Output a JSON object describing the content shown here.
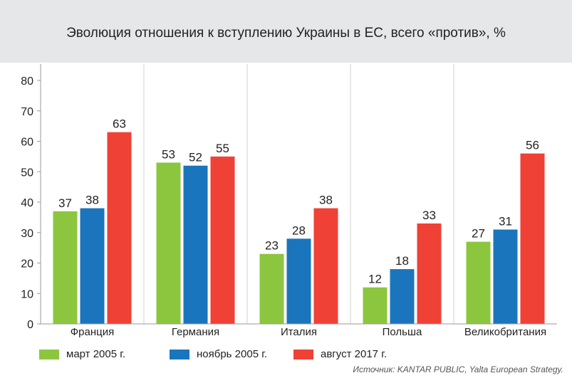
{
  "header": {
    "title": "Эволюция отношения к вступлению Украины в ЕС, всего «против», %"
  },
  "chart_data": {
    "type": "bar",
    "title": "Эволюция отношения к вступлению Украины в ЕС, всего «против», %",
    "categories": [
      "Франция",
      "Германия",
      "Италия",
      "Польша",
      "Великобритания"
    ],
    "series": [
      {
        "name": "март 2005 г.",
        "color": "#8cc63f",
        "values": [
          37,
          53,
          23,
          12,
          27
        ]
      },
      {
        "name": "ноябрь 2005 г.",
        "color": "#1b75bc",
        "values": [
          38,
          52,
          28,
          18,
          31
        ]
      },
      {
        "name": "август 2017 г.",
        "color": "#ef4136",
        "values": [
          63,
          55,
          38,
          33,
          56
        ]
      }
    ],
    "ylim": [
      0,
      80
    ],
    "yticks": [
      0,
      10,
      20,
      30,
      40,
      50,
      60,
      70,
      80
    ],
    "grid": false,
    "category_separators": true,
    "legend_position": "bottom"
  },
  "source": "Источник: KANTAR PUBLIC, Yalta European Strategy."
}
